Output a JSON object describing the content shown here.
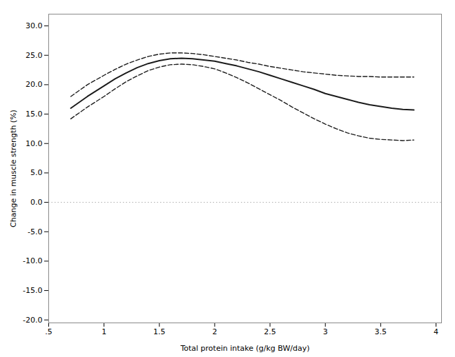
{
  "chart_data": {
    "type": "line",
    "xlabel": "Total protein intake (g/kg BW/day)",
    "ylabel": "Change in muscle strength (%)",
    "xlim": [
      0.5,
      4.05
    ],
    "ylim": [
      -20.5,
      32.0
    ],
    "xticks": [
      {
        "value": 0.5,
        "label": ".5"
      },
      1.0,
      1.5,
      2.0,
      2.5,
      3.0,
      3.5,
      4.0
    ],
    "yticks": [
      {
        "value": -20.0,
        "label": "-20.0"
      },
      {
        "value": -15.0,
        "label": "-15.0"
      },
      {
        "value": -10.0,
        "label": "-10.0"
      },
      {
        "value": -5.0,
        "label": "-5.0"
      },
      {
        "value": 0.0,
        "label": "0.0"
      },
      {
        "value": 5.0,
        "label": "5.0"
      },
      {
        "value": 10.0,
        "label": "10.0"
      },
      {
        "value": 15.0,
        "label": "15.0"
      },
      {
        "value": 20.0,
        "label": "20.0"
      },
      {
        "value": 25.0,
        "label": "25.0"
      },
      {
        "value": 30.0,
        "label": "30.0"
      }
    ],
    "grid": false,
    "x": [
      0.7,
      0.85,
      1.0,
      1.1,
      1.2,
      1.3,
      1.4,
      1.5,
      1.6,
      1.7,
      1.8,
      1.9,
      2.0,
      2.1,
      2.2,
      2.3,
      2.4,
      2.5,
      2.6,
      2.7,
      2.8,
      2.9,
      3.0,
      3.1,
      3.2,
      3.3,
      3.4,
      3.5,
      3.6,
      3.7,
      3.8
    ],
    "series": [
      {
        "color": "#1a1a1a",
        "line_style": "dashed",
        "values": [
          18.0,
          20.0,
          21.6,
          22.6,
          23.5,
          24.2,
          24.8,
          25.2,
          25.4,
          25.4,
          25.3,
          25.1,
          24.8,
          24.5,
          24.2,
          23.8,
          23.5,
          23.1,
          22.8,
          22.5,
          22.2,
          22.0,
          21.8,
          21.6,
          21.5,
          21.4,
          21.4,
          21.3,
          21.3,
          21.3,
          21.3
        ]
      },
      {
        "color": "#1a1a1a",
        "line_style": "dashed",
        "values": [
          14.2,
          16.2,
          18.0,
          19.3,
          20.5,
          21.5,
          22.4,
          23.0,
          23.4,
          23.5,
          23.4,
          23.1,
          22.7,
          22.0,
          21.2,
          20.3,
          19.3,
          18.3,
          17.3,
          16.2,
          15.2,
          14.2,
          13.3,
          12.5,
          11.8,
          11.3,
          10.9,
          10.7,
          10.6,
          10.5,
          10.6
        ]
      },
      {
        "color": "#1a1a1a",
        "line_style": "solid",
        "values": [
          16.0,
          18.0,
          19.8,
          21.0,
          22.0,
          22.9,
          23.6,
          24.1,
          24.4,
          24.5,
          24.4,
          24.2,
          24.0,
          23.6,
          23.2,
          22.7,
          22.2,
          21.6,
          21.0,
          20.4,
          19.8,
          19.2,
          18.5,
          18.0,
          17.5,
          17.0,
          16.6,
          16.3,
          16.0,
          15.8,
          15.7
        ]
      }
    ],
    "reference_line": {
      "y": 0.0,
      "color": "#aaaaaa",
      "line_style": "dotted"
    }
  }
}
